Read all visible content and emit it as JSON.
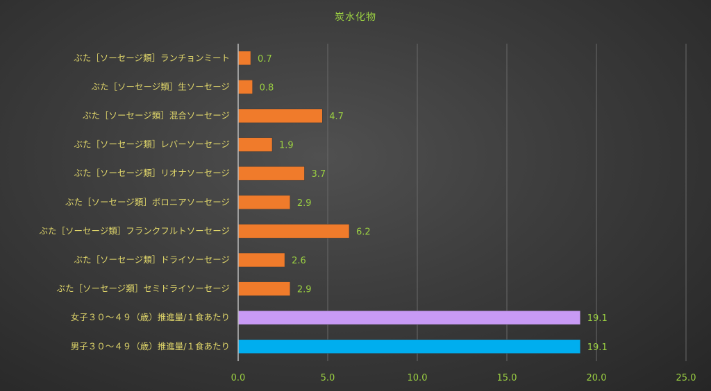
{
  "chart_data": {
    "type": "bar",
    "orientation": "horizontal",
    "title": "炭水化物",
    "categories": [
      "ぶた［ソーセージ類］ランチョンミート",
      "ぶた［ソーセージ類］生ソーセージ",
      "ぶた［ソーセージ類］混合ソーセージ",
      "ぶた［ソーセージ類］レバーソーセージ",
      "ぶた［ソーセージ類］リオナソーセージ",
      "ぶた［ソーセージ類］ボロニアソーセージ",
      "ぶた［ソーセージ類］フランクフルトソーセージ",
      "ぶた［ソーセージ類］ドライソーセージ",
      "ぶた［ソーセージ類］セミドライソーセージ",
      "女子３０～４９（歳）推進量/１食あたり",
      "男子３０～４９（歳）推進量/１食あたり"
    ],
    "values": [
      0.7,
      0.8,
      4.7,
      1.9,
      3.7,
      2.9,
      6.2,
      2.6,
      2.9,
      19.1,
      19.1
    ],
    "value_labels": [
      "0.7",
      "0.8",
      "4.7",
      "1.9",
      "3.7",
      "2.9",
      "6.2",
      "2.6",
      "2.9",
      "19.1",
      "19.1"
    ],
    "bar_colors": [
      "#f07b2b",
      "#f07b2b",
      "#f07b2b",
      "#f07b2b",
      "#f07b2b",
      "#f07b2b",
      "#f07b2b",
      "#f07b2b",
      "#f07b2b",
      "#c89af5",
      "#00aeef"
    ],
    "xlim": [
      0,
      25
    ],
    "x_ticks": [
      0,
      5,
      10,
      15,
      20,
      25
    ],
    "x_tick_labels": [
      "0.0",
      "5.0",
      "10.0",
      "15.0",
      "20.0",
      "25.0"
    ],
    "grid": true,
    "text_color": "#9bd042",
    "category_label_color": "#e0d66a",
    "grid_color": "#6a6a6a",
    "axis_color": "#bbbbbb"
  }
}
